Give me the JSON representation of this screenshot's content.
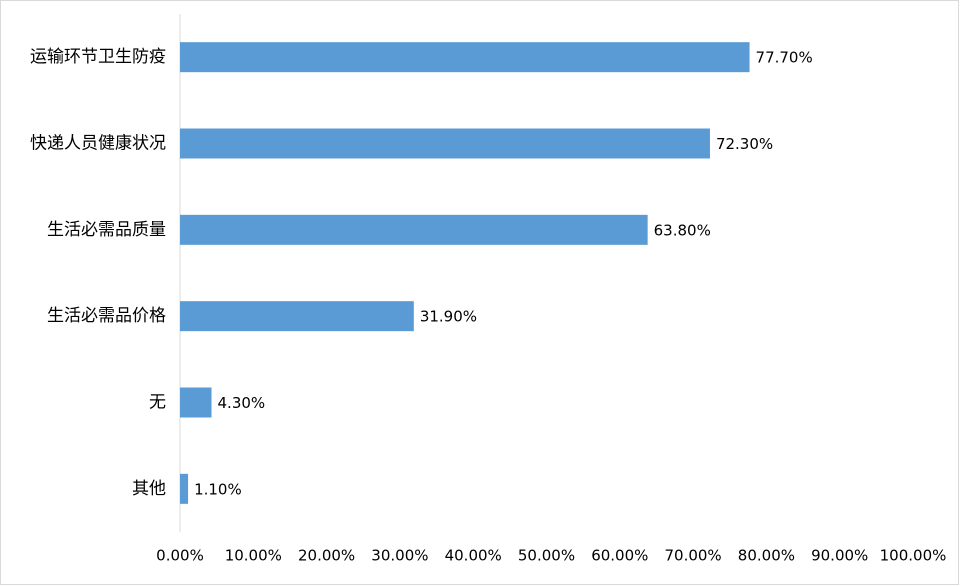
{
  "chart_data": {
    "type": "hbar",
    "categories": [
      "运输环节卫生防疫",
      "快递人员健康状况",
      "生活必需品质量",
      "生活必需品价格",
      "无",
      "其他"
    ],
    "values": [
      77.7,
      72.3,
      63.8,
      31.9,
      4.3,
      1.1
    ],
    "value_labels": [
      "77.70%",
      "72.30%",
      "63.80%",
      "31.90%",
      "4.30%",
      "1.10%"
    ],
    "color": "#5b9bd5",
    "xlim": [
      0,
      100
    ],
    "xticks": [
      {
        "value": 0,
        "label": "0.00%"
      },
      {
        "value": 10,
        "label": "10.00%"
      },
      {
        "value": 20,
        "label": "20.00%"
      },
      {
        "value": 30,
        "label": "30.00%"
      },
      {
        "value": 40,
        "label": "40.00%"
      },
      {
        "value": 50,
        "label": "50.00%"
      },
      {
        "value": 60,
        "label": "60.00%"
      },
      {
        "value": 70,
        "label": "70.00%"
      },
      {
        "value": 80,
        "label": "80.00%"
      },
      {
        "value": 90,
        "label": "90.00%"
      },
      {
        "value": 100,
        "label": "100.00%"
      }
    ],
    "grid": false
  }
}
